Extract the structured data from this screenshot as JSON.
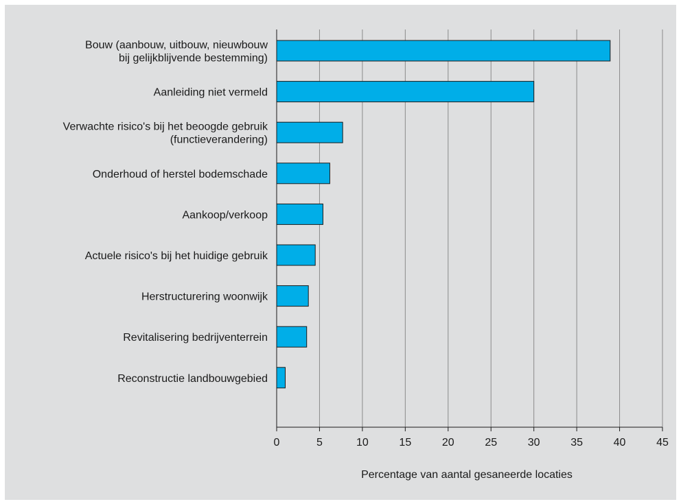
{
  "chart_data": {
    "type": "bar",
    "orientation": "horizontal",
    "title": "",
    "xlabel": "Percentage van aantal gesaneerde locaties",
    "ylabel": "",
    "xlim": [
      0,
      45
    ],
    "xticks": [
      0,
      5,
      10,
      15,
      20,
      25,
      30,
      35,
      40,
      45
    ],
    "grid": "vertical",
    "categories": [
      [
        "Bouw (aanbouw, uitbouw, nieuwbouw",
        "bij gelijkblijvende bestemming)"
      ],
      [
        "Aanleiding niet vermeld"
      ],
      [
        "Verwachte risico's bij het beoogde gebruik",
        "(functieverandering)"
      ],
      [
        "Onderhoud of herstel bodemschade"
      ],
      [
        "Aankoop/verkoop"
      ],
      [
        "Actuele risico's bij het huidige gebruik"
      ],
      [
        "Herstructurering woonwijk"
      ],
      [
        "Revitalisering bedrijventerrein"
      ],
      [
        "Reconstructie landbouwgebied"
      ]
    ],
    "values": [
      38.9,
      30.0,
      7.7,
      6.2,
      5.4,
      4.5,
      3.7,
      3.5,
      1.0
    ],
    "colors": {
      "bar": "#00aee8",
      "bar_stroke": "#1a1a1a",
      "background": "#dedfe0",
      "grid": "#8a8a8a"
    }
  }
}
